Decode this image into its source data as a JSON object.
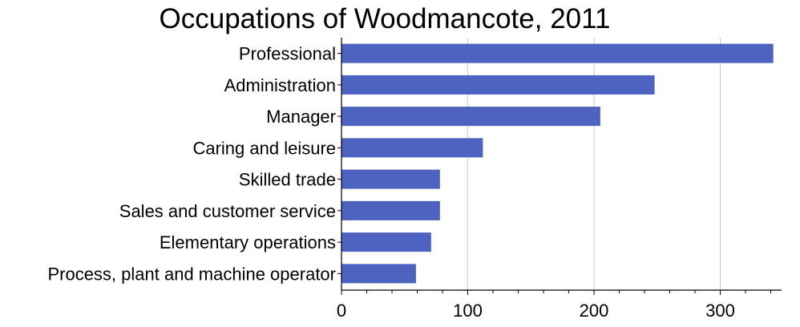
{
  "chart_data": {
    "type": "bar",
    "orientation": "horizontal",
    "title": "Occupations of Woodmancote, 2011",
    "xlabel": "",
    "ylabel": "",
    "categories": [
      "Professional",
      "Administration",
      "Manager",
      "Caring and leisure",
      "Skilled trade",
      "Sales and customer service",
      "Elementary operations",
      "Process, plant and machine operator"
    ],
    "values": [
      342,
      248,
      205,
      112,
      78,
      78,
      71,
      59
    ],
    "xlim": [
      0,
      345
    ],
    "xticks": [
      0,
      100,
      200,
      300
    ],
    "grid": true,
    "bar_color": "#4d63bf",
    "grid_color": "#c8c8c8"
  }
}
